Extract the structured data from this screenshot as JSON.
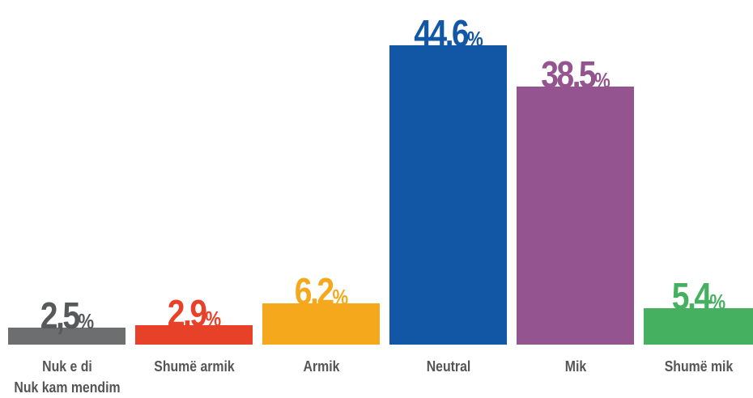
{
  "chart_data": {
    "type": "bar",
    "categories": [
      "Nuk e di\nNuk kam mendim",
      "Shumë armik",
      "Armik",
      "Neutral",
      "Mik",
      "Shumë mik"
    ],
    "values": [
      2.5,
      2.9,
      6.2,
      44.6,
      38.5,
      5.4
    ],
    "value_labels": [
      "2,5%",
      "2,9%",
      "6,2%",
      "44,6%",
      "38,5%",
      "5,4%"
    ],
    "colors": [
      "#6d6e70",
      "#e8412a",
      "#f6a81d",
      "#1257a5",
      "#93548f",
      "#45b160"
    ]
  }
}
